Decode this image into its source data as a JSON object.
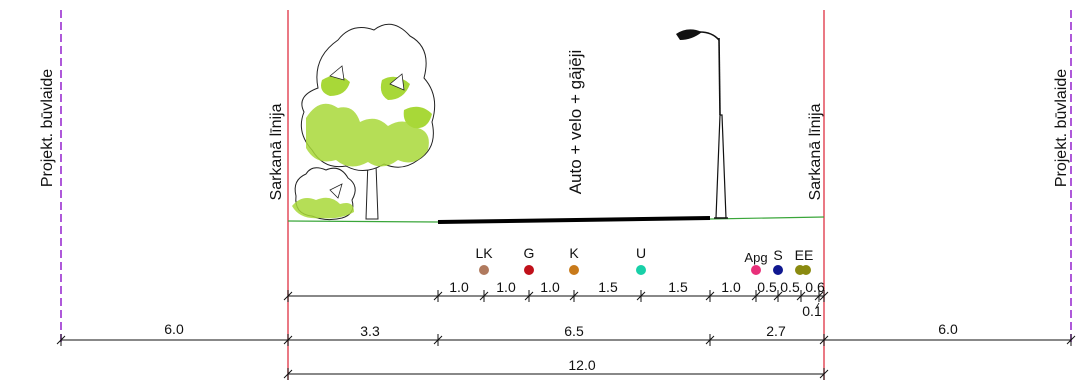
{
  "boundaries": {
    "building_line_left": "Projekt. būvlaide",
    "red_line_left": "Sarkanā līnija",
    "red_line_right": "Sarkanā līnija",
    "building_line_right": "Projekt. būvlaide"
  },
  "road_label": "Auto + velo + gājēji",
  "utilities": [
    {
      "code": "LK",
      "color": "#b07a5e"
    },
    {
      "code": "G",
      "color": "#c0101a"
    },
    {
      "code": "K",
      "color": "#c87a1a"
    },
    {
      "code": "U",
      "color": "#18d0a8"
    },
    {
      "code": "Apg",
      "color": "#e8307a"
    },
    {
      "code": "S",
      "color": "#101890"
    },
    {
      "code": "EE",
      "color": "#8a8a10"
    }
  ],
  "utility_dims": [
    "1.0",
    "1.0",
    "1.0",
    "1.5",
    "1.5",
    "1.0",
    "0.5",
    "0.5",
    "0.6",
    "0.1"
  ],
  "section_dims": [
    "6.0",
    "3.3",
    "6.5",
    "2.7",
    "6.0"
  ],
  "total_dim": "12.0",
  "colors": {
    "red_line": "#e04050",
    "building_line": "#9b30d0",
    "ground": "#3aa63a",
    "tree_fill": "#a8d838"
  }
}
